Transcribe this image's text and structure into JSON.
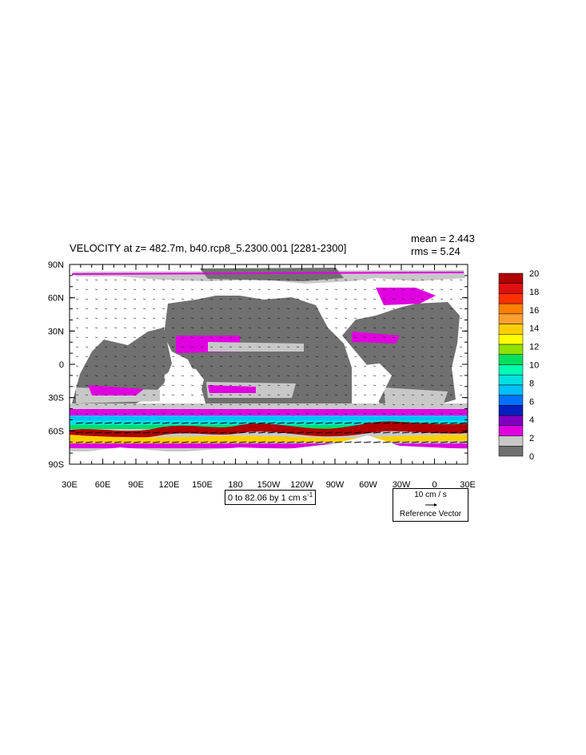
{
  "map": {
    "title": "VELOCITY at z= 482.7m, b40.rcp8_5.2300.001 [2281-2300]",
    "mean_text": "mean = 2.443",
    "rms_text": "rms = 5.24",
    "lat_labels": [
      "90N",
      "60N",
      "30N",
      "0",
      "30S",
      "60S",
      "90S"
    ],
    "lon_labels": [
      "30E",
      "60E",
      "90E",
      "120E",
      "150E",
      "180",
      "150W",
      "120W",
      "90W",
      "60W",
      "30W",
      "0",
      "30E"
    ],
    "contour_info": "0 to 82.06 by 1 cm s",
    "contour_info_sup": "-1",
    "ref_vector": {
      "magnitude": "10 cm / s",
      "label": "Reference Vector"
    }
  },
  "colorbar": {
    "labels": [
      "20",
      "18",
      "16",
      "14",
      "12",
      "10",
      "8",
      "6",
      "4",
      "2",
      "0"
    ],
    "colors": [
      "#b00000",
      "#e01010",
      "#ff3000",
      "#ff8000",
      "#ffa030",
      "#ffd000",
      "#ffff00",
      "#90e000",
      "#00e060",
      "#00ffb0",
      "#00e0e0",
      "#00c0ff",
      "#0070ff",
      "#0020c0",
      "#8000c0",
      "#e000e0",
      "#c8c8c8",
      "#707070"
    ]
  },
  "colors": {
    "land": "#ffffff",
    "ocean_low": "#707070",
    "ocean_mid": "#c8c8c8",
    "magenta": "#e000e0",
    "acc": "#b00000"
  }
}
